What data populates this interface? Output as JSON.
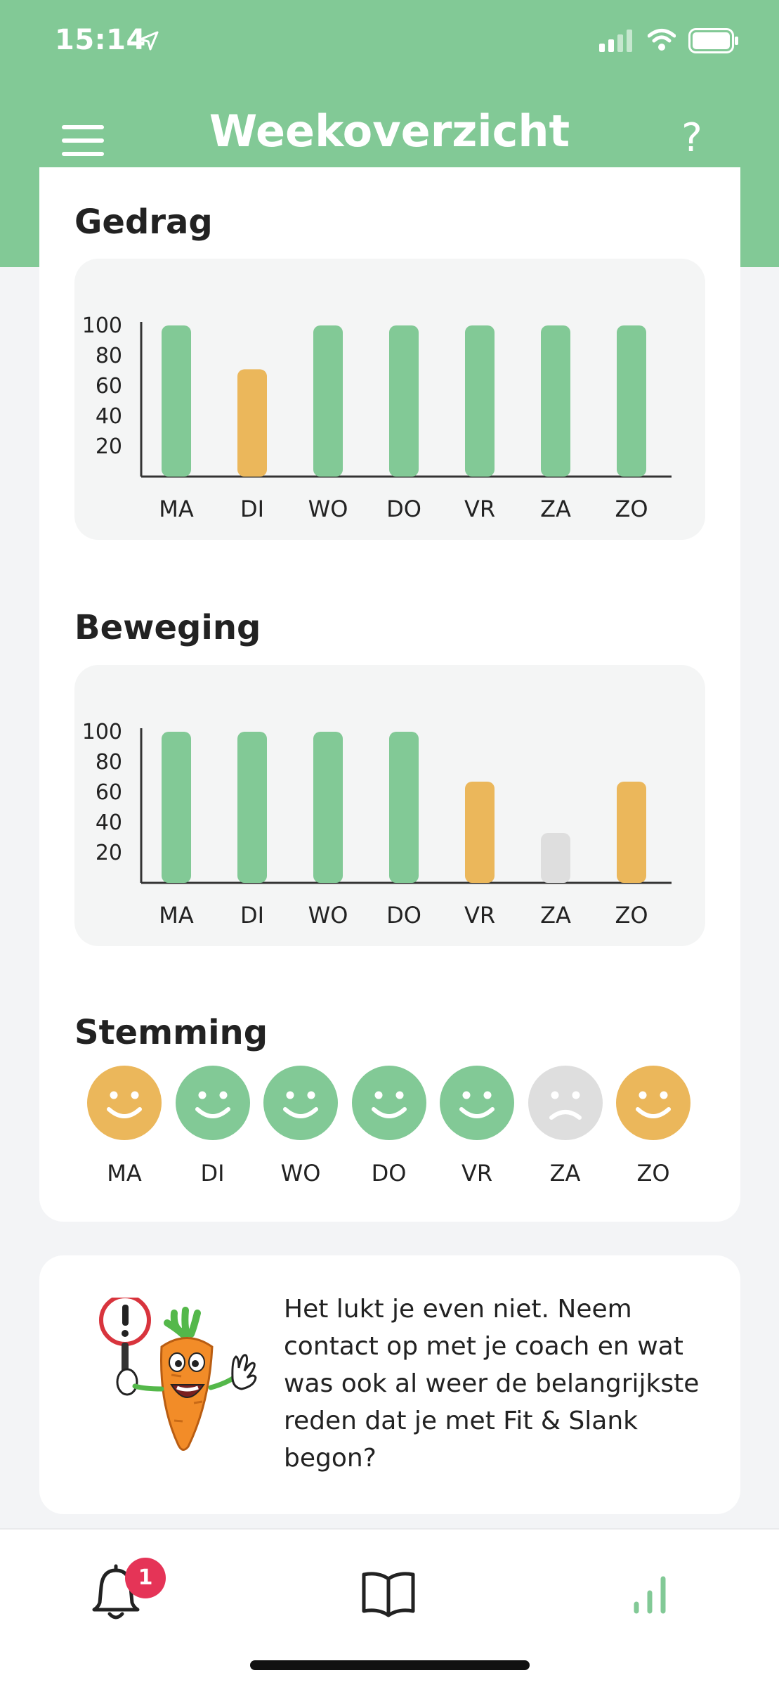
{
  "status_bar": {
    "time": "15:14"
  },
  "header": {
    "title": "Weekoverzicht",
    "help_label": "?"
  },
  "colors": {
    "brand_green": "#82c996",
    "warning_orange": "#ebb75b",
    "neutral_grey": "#dedede",
    "badge_red": "#e53457"
  },
  "sections": {
    "gedrag_title": "Gedrag",
    "beweging_title": "Beweging",
    "stemming_title": "Stemming"
  },
  "chart_data": [
    {
      "type": "bar",
      "title": "Gedrag",
      "categories": [
        "MA",
        "DI",
        "WO",
        "DO",
        "VR",
        "ZA",
        "ZO"
      ],
      "values": [
        100,
        71,
        100,
        100,
        100,
        100,
        100
      ],
      "bar_colors": [
        "#82c996",
        "#ebb75b",
        "#82c996",
        "#82c996",
        "#82c996",
        "#82c996",
        "#82c996"
      ],
      "yticks": [
        100,
        80,
        60,
        40,
        20
      ],
      "ylim": [
        0,
        100
      ],
      "grid": false
    },
    {
      "type": "bar",
      "title": "Beweging",
      "categories": [
        "MA",
        "DI",
        "WO",
        "DO",
        "VR",
        "ZA",
        "ZO"
      ],
      "values": [
        100,
        100,
        100,
        100,
        67,
        33,
        67
      ],
      "bar_colors": [
        "#82c996",
        "#82c996",
        "#82c996",
        "#82c996",
        "#ebb75b",
        "#dedede",
        "#ebb75b"
      ],
      "yticks": [
        100,
        80,
        60,
        40,
        20
      ],
      "ylim": [
        0,
        100
      ],
      "grid": false
    }
  ],
  "mood": {
    "days": [
      {
        "label": "MA",
        "mood": "happy",
        "color": "#ebb75b"
      },
      {
        "label": "DI",
        "mood": "happy",
        "color": "#82c996"
      },
      {
        "label": "WO",
        "mood": "happy",
        "color": "#82c996"
      },
      {
        "label": "DO",
        "mood": "happy",
        "color": "#82c996"
      },
      {
        "label": "VR",
        "mood": "happy",
        "color": "#82c996"
      },
      {
        "label": "ZA",
        "mood": "sad",
        "color": "#dedede"
      },
      {
        "label": "ZO",
        "mood": "happy",
        "color": "#ebb75b"
      }
    ]
  },
  "tip": {
    "text": "Het lukt je even niet. Neem contact op met je coach en wat was ook al weer de belangrijkste reden dat je met Fit & Slank begon?",
    "illustration": "carrot-mascot-warning-sign"
  },
  "bottom_nav": {
    "items": [
      {
        "icon": "bell-icon",
        "active": false
      },
      {
        "icon": "book-icon",
        "active": false
      },
      {
        "icon": "stats-icon",
        "active": true
      }
    ],
    "notification_count": "1"
  }
}
